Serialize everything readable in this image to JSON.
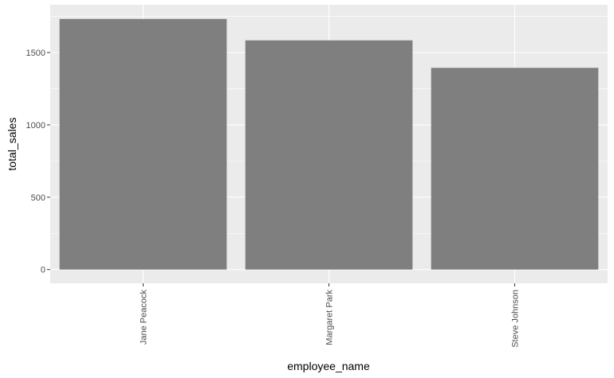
{
  "chart_data": {
    "type": "bar",
    "categories": [
      "Jane Peacock",
      "Margaret Park",
      "Steve Johnson"
    ],
    "values": [
      1732,
      1584,
      1394
    ],
    "xlabel": "employee_name",
    "ylabel": "total_sales",
    "ylim": [
      -95,
      1830
    ],
    "yticks": [
      0,
      500,
      1000,
      1500
    ],
    "ytick_labels": [
      "0",
      "500",
      "1000",
      "1500"
    ],
    "grid": true,
    "colors": {
      "panel": "#ebebeb",
      "grid_major": "#ffffff",
      "bar": "#7f7f7f",
      "tick": "#333333"
    }
  }
}
